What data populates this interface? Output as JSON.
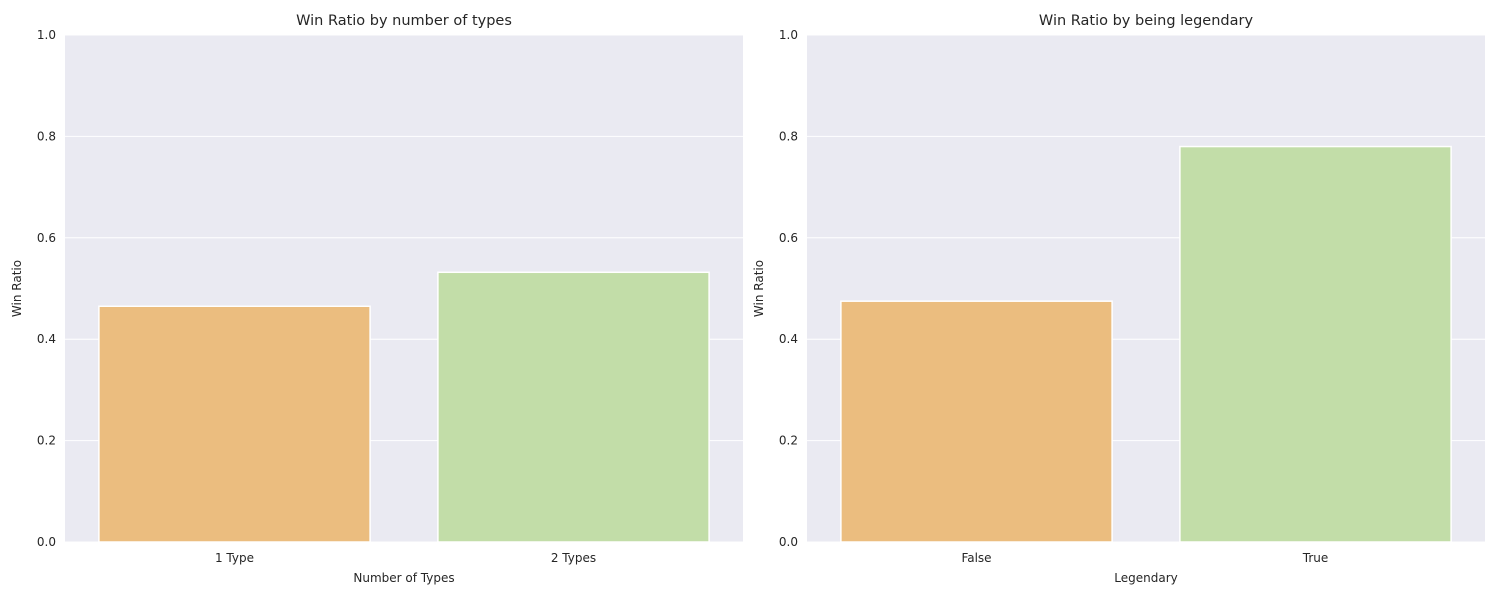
{
  "chart_data": [
    {
      "type": "bar",
      "title": "Win Ratio by number of types",
      "xlabel": "Number of Types",
      "ylabel": "Win Ratio",
      "categories": [
        "1 Type",
        "2 Types"
      ],
      "values": [
        0.465,
        0.532
      ],
      "colors": [
        "#ebbd7f",
        "#c2dda8"
      ],
      "ylim": [
        0,
        1.0
      ],
      "yticks": [
        "0.0",
        "0.2",
        "0.4",
        "0.6",
        "0.8",
        "1.0"
      ],
      "grid": true,
      "background": "#eaeaf2"
    },
    {
      "type": "bar",
      "title": "Win Ratio by being legendary",
      "xlabel": "Legendary",
      "ylabel": "Win Ratio",
      "categories": [
        "False",
        "True"
      ],
      "values": [
        0.475,
        0.78
      ],
      "colors": [
        "#ebbd7f",
        "#c2dda8"
      ],
      "ylim": [
        0,
        1.0
      ],
      "yticks": [
        "0.0",
        "0.2",
        "0.4",
        "0.6",
        "0.8",
        "1.0"
      ],
      "grid": true,
      "background": "#eaeaf2"
    }
  ]
}
